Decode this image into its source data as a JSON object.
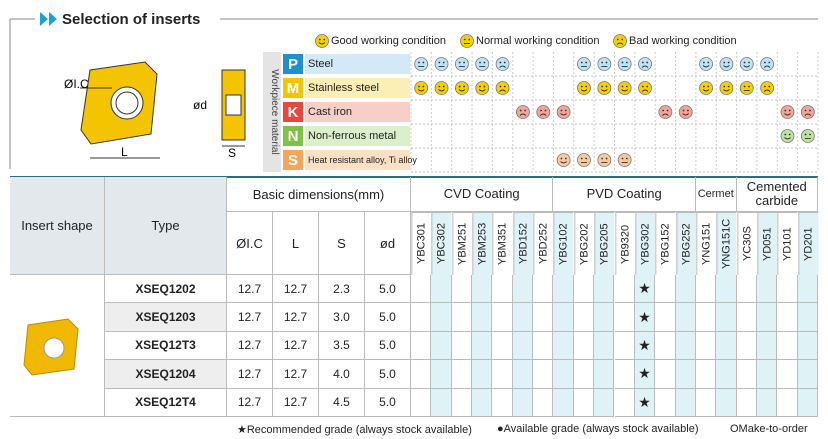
{
  "header": {
    "title": "Selection of inserts"
  },
  "drawing_labels": {
    "ic": "ØI.C",
    "l": "L",
    "d": "ød",
    "s": "S"
  },
  "legend": [
    "Good working condition",
    "Normal working condition",
    "Bad working condition"
  ],
  "workpiece_label": "Workpiece material",
  "materials": [
    {
      "code": "P",
      "name": "Steel"
    },
    {
      "code": "M",
      "name": "Stainless steel"
    },
    {
      "code": "K",
      "name": "Cast iron"
    },
    {
      "code": "N",
      "name": "Non-ferrous metal"
    },
    {
      "code": "S",
      "name": "Heat resistant alloy, Ti alloy"
    }
  ],
  "table": {
    "insert_shape": "Insert shape",
    "type": "Type",
    "basic": "Basic dimensions(mm)",
    "dims": [
      "ØI.C",
      "L",
      "S",
      "ød"
    ],
    "groups": [
      {
        "name": "CVD Coating",
        "grades": [
          "YBC301",
          "YBC302",
          "YBM251",
          "YBM253",
          "YBM351",
          "YBD152",
          "YBD252"
        ]
      },
      {
        "name": "PVD Coating",
        "grades": [
          "YBG102",
          "YBG202",
          "YBG205",
          "YB9320",
          "YBG302",
          "YBG152",
          "YBG252"
        ]
      },
      {
        "name": "Cermet",
        "grades": [
          "YNG151",
          "YNG151C"
        ]
      },
      {
        "name": "Cemented carbide",
        "grades": [
          "YC30S",
          "YD051",
          "YD101",
          "YD201"
        ]
      }
    ],
    "rows": [
      {
        "type": "XSEQ1202",
        "dims": [
          "12.7",
          "12.7",
          "2.3",
          "5.0"
        ],
        "grades": [
          null,
          null,
          null,
          null,
          null,
          null,
          null,
          null,
          null,
          null,
          null,
          "★",
          null,
          null,
          null,
          null,
          null,
          null,
          null,
          null
        ]
      },
      {
        "type": "XSEQ1203",
        "dims": [
          "12.7",
          "12.7",
          "3.0",
          "5.0"
        ],
        "grades": [
          null,
          null,
          null,
          null,
          null,
          null,
          null,
          null,
          null,
          null,
          null,
          "★",
          null,
          null,
          null,
          null,
          null,
          null,
          null,
          null
        ]
      },
      {
        "type": "XSEQ12T3",
        "dims": [
          "12.7",
          "12.7",
          "3.5",
          "5.0"
        ],
        "grades": [
          null,
          null,
          null,
          null,
          null,
          null,
          null,
          null,
          null,
          null,
          null,
          "★",
          null,
          null,
          null,
          null,
          null,
          null,
          null,
          null
        ]
      },
      {
        "type": "XSEQ1204",
        "dims": [
          "12.7",
          "12.7",
          "4.0",
          "5.0"
        ],
        "grades": [
          null,
          null,
          null,
          null,
          null,
          null,
          null,
          null,
          null,
          null,
          null,
          "★",
          null,
          null,
          null,
          null,
          null,
          null,
          null,
          null
        ]
      },
      {
        "type": "XSEQ12T4",
        "dims": [
          "12.7",
          "12.7",
          "4.5",
          "5.0"
        ],
        "grades": [
          null,
          null,
          null,
          null,
          null,
          null,
          null,
          null,
          null,
          null,
          null,
          "★",
          null,
          null,
          null,
          null,
          null,
          null,
          null,
          null
        ]
      }
    ]
  },
  "footer": [
    "★Recommended grade (always stock available)",
    "●Available grade (always stock available)",
    "OMake-to-order"
  ]
}
